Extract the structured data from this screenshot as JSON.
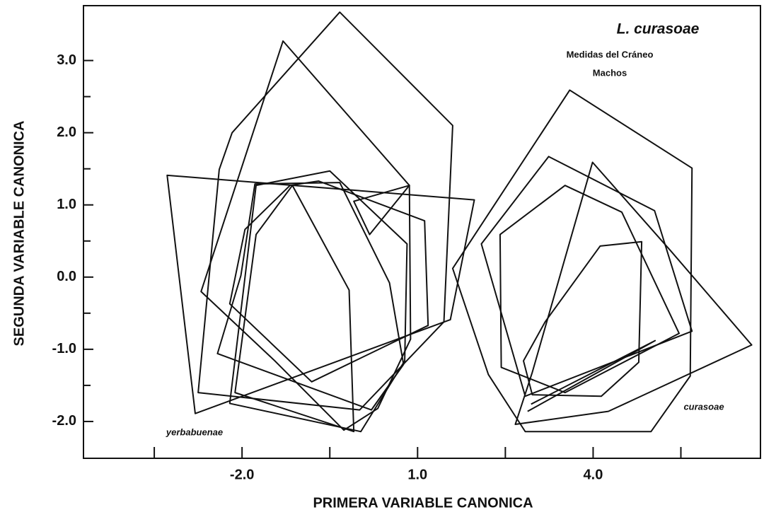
{
  "chart_data": {
    "type": "polygon",
    "title": "L. curasoae",
    "subtitle": "Medidas del Cráneo",
    "subtitle2": "Machos",
    "x_label": "PRIMERA VARIABLE CANONICA",
    "y_label": "SEGUNDA VARIABLE CANONICA",
    "annotations": [
      "yerbabuenae",
      "curasoae"
    ],
    "color": "#111111",
    "xlim": [
      -4.71,
      6.86
    ],
    "ylim": [
      -2.51,
      3.76
    ],
    "xticks": [
      {
        "value": -2,
        "label": "-2.0"
      },
      {
        "value": 1,
        "label": "1.0"
      },
      {
        "value": 4,
        "label": "4.0"
      }
    ],
    "xminor": [
      -3.5,
      -0.5,
      2.5,
      5.5
    ],
    "yticks": [
      {
        "value": -2,
        "label": "-2.0"
      },
      {
        "value": -1,
        "label": "-1.0"
      },
      {
        "value": 0,
        "label": "0.0"
      },
      {
        "value": 1,
        "label": "1.0"
      },
      {
        "value": 2,
        "label": "2.0"
      },
      {
        "value": 3,
        "label": "3.0"
      }
    ],
    "yminor": [
      -1.5,
      -0.5,
      0.5,
      1.5,
      2.5
    ],
    "series": [
      {
        "x": [
          -0.33,
          1.6,
          1.45,
          0.01,
          -2.75,
          -2.39,
          -2.17
        ],
        "y": [
          3.67,
          2.1,
          -0.62,
          -1.84,
          -1.6,
          1.49,
          2.0
        ],
        "closed": true
      },
      {
        "x": [
          -1.3,
          0.86,
          0.88,
          0.32,
          -0.26,
          -1.44,
          -2.7
        ],
        "y": [
          3.27,
          1.27,
          -0.86,
          -1.82,
          -2.12,
          -1.16,
          -0.2
        ],
        "closed": true
      },
      {
        "x": [
          -3.28,
          1.97,
          1.56,
          -2.8
        ],
        "y": [
          1.41,
          1.07,
          -0.59,
          -1.89
        ],
        "closed": true
      },
      {
        "x": [
          -1.76,
          -0.5,
          0.82,
          0.78,
          0.03,
          -2.21
        ],
        "y": [
          1.27,
          1.47,
          0.46,
          -1.16,
          -2.14,
          -1.75
        ],
        "closed": true
      },
      {
        "x": [
          -1.14,
          -0.17,
          -0.09,
          -2.12,
          -1.76
        ],
        "y": [
          1.27,
          -0.18,
          -2.14,
          -1.6,
          0.59
        ],
        "closed": true
      },
      {
        "x": [
          -0.09,
          0.86,
          0.18
        ],
        "y": [
          1.05,
          1.27,
          0.59
        ],
        "closed": true
      },
      {
        "x": [
          -1.18,
          -0.69,
          1.12,
          1.18,
          -0.81,
          -2.21,
          -1.95
        ],
        "y": [
          1.27,
          1.33,
          0.78,
          -0.67,
          -1.45,
          -0.37,
          0.66
        ],
        "closed": true
      },
      {
        "x": [
          -2.42,
          0.21,
          0.76,
          0.52,
          -0.33,
          -1.78,
          -2.02
        ],
        "y": [
          -1.06,
          -1.84,
          -1.21,
          -0.08,
          1.31,
          1.29,
          0.02
        ],
        "closed": true
      },
      {
        "x": [
          3.6,
          5.69,
          5.66,
          4.99,
          2.84,
          2.21,
          1.6
        ],
        "y": [
          2.59,
          1.51,
          -1.37,
          -2.14,
          -2.14,
          -1.35,
          0.12
        ],
        "closed": true
      },
      {
        "x": [
          3.24,
          5.05,
          5.69,
          2.84,
          2.09
        ],
        "y": [
          1.67,
          0.92,
          -0.75,
          -1.65,
          0.46
        ],
        "closed": true
      },
      {
        "x": [
          3.99,
          5.33,
          6.71,
          4.26,
          2.67,
          2.96
        ],
        "y": [
          1.59,
          0.36,
          -0.94,
          -1.86,
          -2.04,
          -1.32
        ],
        "closed": true
      },
      {
        "x": [
          2.41,
          3.52,
          4.49,
          5.47,
          3.52,
          2.43
        ],
        "y": [
          0.59,
          1.27,
          0.9,
          -0.78,
          -1.6,
          -1.25
        ],
        "closed": true
      },
      {
        "x": [
          4.12,
          4.83,
          4.78,
          4.14,
          2.96,
          2.81,
          3.18
        ],
        "y": [
          0.43,
          0.49,
          -1.18,
          -1.65,
          -1.63,
          -1.16,
          -0.62
        ],
        "closed": true
      },
      {
        "x": [
          2.88,
          5.06,
          2.94
        ],
        "y": [
          -1.86,
          -0.88,
          -1.76
        ],
        "closed": false
      }
    ]
  }
}
